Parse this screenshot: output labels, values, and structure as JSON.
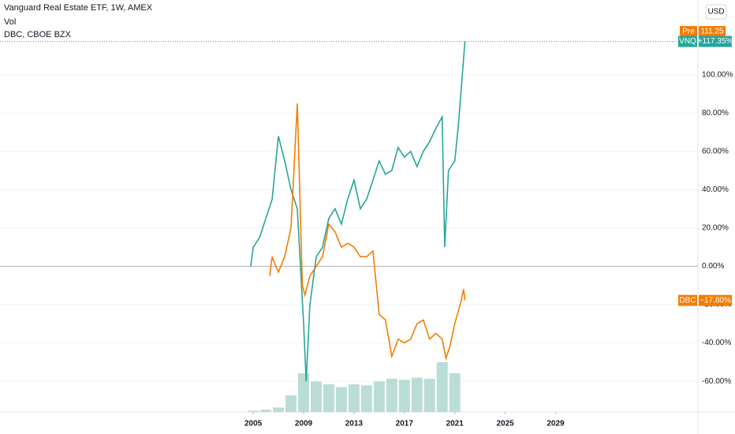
{
  "header": {
    "title": "Vanguard Real Estate ETF, 1W, AMEX",
    "volume_label": "Vol",
    "compare_label": "DBC, CBOE BZX",
    "currency": "USD"
  },
  "pre_market": {
    "label": "Pre",
    "price": 111.25
  },
  "chart_data": {
    "type": "line",
    "xlim": [
      1984.9,
      2040.3
    ],
    "xticks": [
      2005,
      2009,
      2013,
      2017,
      2021,
      2025,
      2029
    ],
    "ylim": [
      -76,
      139
    ],
    "yticks": [
      {
        "value": 100,
        "label": "100.00%"
      },
      {
        "value": 80,
        "label": "80.00%"
      },
      {
        "value": 60,
        "label": "60.00%"
      },
      {
        "value": 40,
        "label": "40.00%"
      },
      {
        "value": 20,
        "label": "20.00%"
      },
      {
        "value": 0,
        "label": "0.00%"
      },
      {
        "value": -20,
        "label": "-20.00%"
      },
      {
        "value": -40,
        "label": "-40.00%"
      },
      {
        "value": -60,
        "label": "-60.00%"
      }
    ],
    "grid": true,
    "series": [
      {
        "name": "VNQ",
        "color": "#26a69a",
        "last_label": "+117.35%",
        "x": [
          2004.8,
          2005,
          2005.5,
          2006,
          2006.5,
          2007,
          2007.5,
          2008,
          2008.5,
          2009,
          2009.2,
          2009.5,
          2010,
          2010.5,
          2011,
          2011.5,
          2012,
          2012.5,
          2013,
          2013.5,
          2014,
          2014.5,
          2015,
          2015.5,
          2016,
          2016.5,
          2017,
          2017.5,
          2018,
          2018.5,
          2019,
          2019.5,
          2020,
          2020.2,
          2020.5,
          2021,
          2021.3,
          2021.6,
          2021.8
        ],
        "values": [
          0,
          10,
          15,
          25,
          35,
          68,
          55,
          40,
          30,
          -30,
          -60,
          -20,
          5,
          10,
          25,
          30,
          22,
          35,
          45,
          30,
          35,
          45,
          55,
          48,
          50,
          62,
          57,
          60,
          52,
          60,
          65,
          72,
          78,
          10,
          50,
          55,
          75,
          100,
          117.35
        ]
      },
      {
        "name": "DBC",
        "color": "#f57c00",
        "last_label": "−17.80%",
        "x": [
          2006.3,
          2006.5,
          2006.8,
          2007,
          2007.5,
          2008,
          2008.5,
          2008.9,
          2009.1,
          2009.5,
          2010,
          2010.5,
          2011,
          2011.5,
          2012,
          2012.5,
          2013,
          2013.5,
          2014,
          2014.5,
          2015,
          2015.5,
          2016,
          2016.5,
          2017,
          2017.5,
          2018,
          2018.5,
          2019,
          2019.5,
          2020,
          2020.3,
          2020.6,
          2021,
          2021.5,
          2021.7,
          2021.8
        ],
        "values": [
          -5,
          5,
          0,
          -3,
          5,
          20,
          85,
          -10,
          -15,
          -5,
          0,
          5,
          22,
          18,
          10,
          12,
          10,
          5,
          5,
          8,
          -25,
          -28,
          -47,
          -38,
          -40,
          -38,
          -30,
          -28,
          -38,
          -35,
          -38,
          -48,
          -42,
          -30,
          -18,
          -12,
          -17.8
        ]
      }
    ],
    "volume": {
      "color": "#9ccfc6",
      "x": [
        2005,
        2006,
        2007,
        2008,
        2009,
        2010,
        2011,
        2012,
        2013,
        2014,
        2015,
        2016,
        2017,
        2018,
        2019,
        2020,
        2021
      ],
      "values": [
        2,
        4,
        8,
        30,
        70,
        55,
        50,
        45,
        50,
        48,
        55,
        60,
        58,
        62,
        60,
        90,
        70
      ],
      "lim": [
        0,
        100
      ]
    }
  }
}
